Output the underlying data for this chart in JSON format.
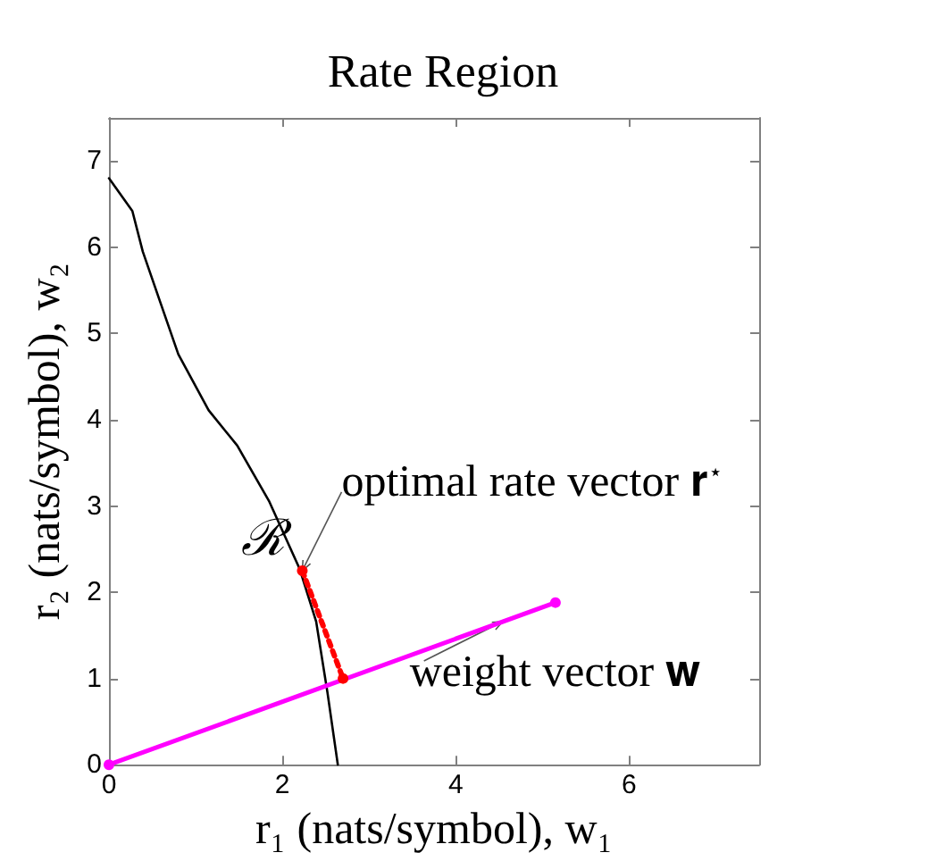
{
  "chart_data": {
    "type": "line",
    "title": "Rate Region",
    "xlabel": "r₁ (nats/symbol), w₁",
    "ylabel": "r₂ (nats/symbol), w₂",
    "xlim": [
      0,
      7.5
    ],
    "ylim": [
      0,
      7.5
    ],
    "xticks": [
      0,
      2,
      4,
      6
    ],
    "yticks": [
      0,
      1,
      2,
      3,
      4,
      5,
      6,
      7
    ],
    "grid": false,
    "series": [
      {
        "color": "#000000",
        "x": [
          0,
          0.27,
          0.39,
          0.6,
          0.8,
          1.15,
          1.48,
          1.85,
          2.2,
          2.39,
          2.52,
          2.64
        ],
        "values": [
          6.8,
          6.42,
          5.95,
          5.34,
          4.76,
          4.11,
          3.7,
          3.05,
          2.27,
          1.66,
          0.84,
          0
        ],
        "marker": "none",
        "line_style": "solid"
      },
      {
        "color": "#ff00ff",
        "x": [
          0,
          5.15
        ],
        "values": [
          0,
          1.88
        ],
        "marker": "circle",
        "line_style": "solid"
      },
      {
        "color": "#ff0000",
        "x": [
          2.23,
          2.7
        ],
        "values": [
          2.25,
          1.0
        ],
        "marker": "circle",
        "line_style": "dotted"
      }
    ],
    "annotations": [
      "ℛ",
      {
        "text": "optimal rate vector 𝐫$^{⋆}$",
        "x": 2.23,
        "y": 2.25
      },
      {
        "text": "weight vector 𝐰",
        "x": 4.54,
        "y": 1.66
      }
    ]
  }
}
